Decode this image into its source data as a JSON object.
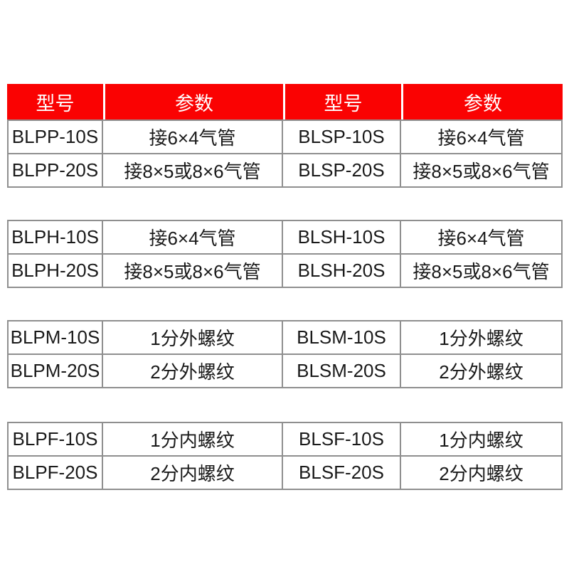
{
  "colors": {
    "header_bg": "#fa0202",
    "header_text": "#ffffff",
    "body_text": "#1a1a1a",
    "grid_border": "#8f8f8f",
    "page_bg": "#ffffff"
  },
  "header": {
    "labels": [
      "型号",
      "参数",
      "型号",
      "参数"
    ]
  },
  "blocks": [
    {
      "rows": [
        [
          "BLPP-10S",
          "接6×4气管",
          "BLSP-10S",
          "接6×4气管"
        ],
        [
          "BLPP-20S",
          "接8×5或8×6气管",
          "BLSP-20S",
          "接8×5或8×6气管"
        ]
      ]
    },
    {
      "rows": [
        [
          "BLPH-10S",
          "接6×4气管",
          "BLSH-10S",
          "接6×4气管"
        ],
        [
          "BLPH-20S",
          "接8×5或8×6气管",
          "BLSH-20S",
          "接8×5或8×6气管"
        ]
      ]
    },
    {
      "rows": [
        [
          "BLPM-10S",
          "1分外螺纹",
          "BLSM-10S",
          "1分外螺纹"
        ],
        [
          "BLPM-20S",
          "2分外螺纹",
          "BLSM-20S",
          "2分外螺纹"
        ]
      ]
    },
    {
      "rows": [
        [
          "BLPF-10S",
          "1分内螺纹",
          "BLSF-10S",
          "1分内螺纹"
        ],
        [
          "BLPF-20S",
          "2分内螺纹",
          "BLSF-20S",
          "2分内螺纹"
        ]
      ]
    }
  ]
}
